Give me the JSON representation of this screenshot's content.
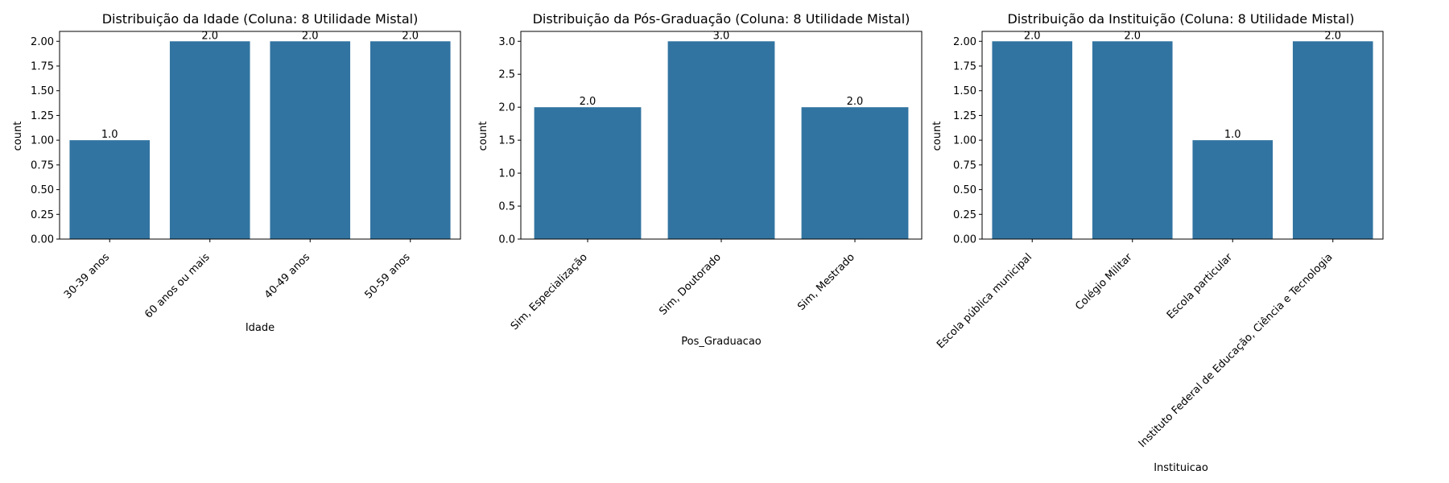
{
  "chart_data": [
    {
      "type": "bar",
      "title": "Distribuição da Idade (Coluna: 8 Utilidade Mistal)",
      "xlabel": "Idade",
      "ylabel": "count",
      "categories": [
        "30-39 anos",
        "60 anos ou mais",
        "40-49 anos",
        "50-59 anos"
      ],
      "values": [
        1.0,
        2.0,
        2.0,
        2.0
      ],
      "value_labels": [
        "1.0",
        "2.0",
        "2.0",
        "2.0"
      ],
      "ylim": [
        0,
        2.1
      ],
      "yticks": [
        0.0,
        0.25,
        0.5,
        0.75,
        1.0,
        1.25,
        1.5,
        1.75,
        2.0
      ],
      "ytick_labels": [
        "0.00",
        "0.25",
        "0.50",
        "0.75",
        "1.00",
        "1.25",
        "1.50",
        "1.75",
        "2.00"
      ],
      "bar_color": "#3274a1",
      "grid": false,
      "legend": false
    },
    {
      "type": "bar",
      "title": "Distribuição da Pós-Graduação (Coluna: 8 Utilidade Mistal)",
      "xlabel": "Pos_Graduacao",
      "ylabel": "count",
      "categories": [
        "Sim, Especialização",
        "Sim, Doutorado",
        "Sim, Mestrado"
      ],
      "values": [
        2.0,
        3.0,
        2.0
      ],
      "value_labels": [
        "2.0",
        "3.0",
        "2.0"
      ],
      "ylim": [
        0,
        3.15
      ],
      "yticks": [
        0.0,
        0.5,
        1.0,
        1.5,
        2.0,
        2.5,
        3.0
      ],
      "ytick_labels": [
        "0.0",
        "0.5",
        "1.0",
        "1.5",
        "2.0",
        "2.5",
        "3.0"
      ],
      "bar_color": "#3274a1",
      "grid": false,
      "legend": false
    },
    {
      "type": "bar",
      "title": "Distribuição da Instituição (Coluna: 8 Utilidade Mistal)",
      "xlabel": "Instituicao",
      "ylabel": "count",
      "categories": [
        "Escola pública municipal",
        "Colégio Militar",
        "Escola particular",
        "Instituto Federal de Educação, Ciência e Tecnologia"
      ],
      "values": [
        2.0,
        2.0,
        1.0,
        2.0
      ],
      "value_labels": [
        "2.0",
        "2.0",
        "1.0",
        "2.0"
      ],
      "ylim": [
        0,
        2.1
      ],
      "yticks": [
        0.0,
        0.25,
        0.5,
        0.75,
        1.0,
        1.25,
        1.5,
        1.75,
        2.0
      ],
      "ytick_labels": [
        "0.00",
        "0.25",
        "0.50",
        "0.75",
        "1.00",
        "1.25",
        "1.50",
        "1.75",
        "2.00"
      ],
      "bar_color": "#3274a1",
      "grid": false,
      "legend": false
    }
  ]
}
